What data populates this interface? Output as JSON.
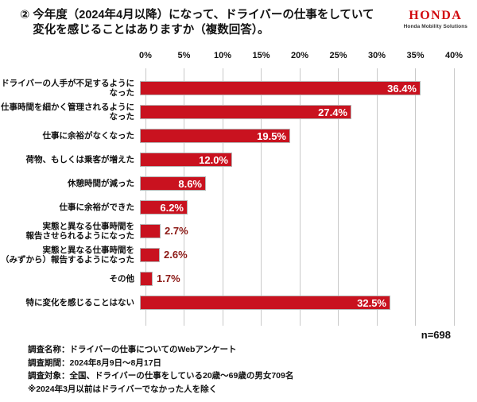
{
  "header": {
    "number_prefix": "②",
    "title_line1": "今年度（2024年4月以降）になって、ドライバーの仕事をしていて",
    "title_line2": "変化を感じることはありますか（複数回答）。",
    "logo": {
      "wordmark": "HONDA",
      "subtitle": "Honda Mobility Solutions",
      "color": "#d20a10"
    }
  },
  "chart_data": {
    "type": "bar",
    "orientation": "horizontal",
    "title": "今年度（2024年4月以降）になって、ドライバーの仕事をしていて変化を感じることはありますか（複数回答）。",
    "categories": [
      "ドライバーの人手が不足するようになった",
      "仕事時間を細かく管理されるようになった",
      "仕事に余裕がなくなった",
      "荷物、もしくは乗客が増えた",
      "休憩時間が減った",
      "仕事に余裕ができた",
      "実態と異なる仕事時間を\n報告させられるようになった",
      "実態と異なる仕事時間を\n（みずから）報告するようになった",
      "その他",
      "特に変化を感じることはない"
    ],
    "values": [
      36.4,
      27.4,
      19.5,
      12.0,
      8.6,
      6.2,
      2.7,
      2.6,
      1.7,
      32.5
    ],
    "value_labels": [
      "36.4%",
      "27.4%",
      "19.5%",
      "12.0%",
      "8.6%",
      "6.2%",
      "2.7%",
      "2.6%",
      "1.7%",
      "32.5%"
    ],
    "axis_ticks": [
      "0%",
      "5%",
      "10%",
      "15%",
      "20%",
      "25%",
      "30%",
      "35%",
      "40%"
    ],
    "xlim": [
      0,
      40
    ],
    "grid": true,
    "bar_color": "#c9121f",
    "inside_label_color": "#ffffff",
    "outside_label_color": "#8c1a16",
    "sample_label": "n=698"
  },
  "footer": {
    "lines": [
      "調査名称：ドライバーの仕事についてのWebアンケート",
      "調査期間：2024年8月9日～8月17日",
      "調査対象：全国、ドライバーの仕事をしている20歳～69歳の男女709名",
      "※2024年3月以前はドライバーでなかった人を除く"
    ]
  }
}
